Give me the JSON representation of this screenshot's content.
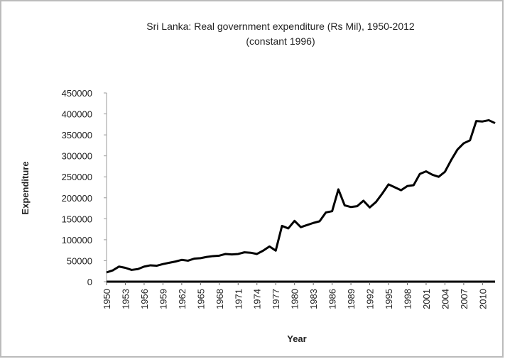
{
  "chart_data": {
    "type": "line",
    "title": "Sri Lanka: Real government expenditure (Rs Mil), 1950-2012",
    "subtitle": "(constant 1996)",
    "x_label": "Year",
    "y_label": "Expenditure",
    "x": [
      1950,
      1951,
      1952,
      1953,
      1954,
      1955,
      1956,
      1957,
      1958,
      1959,
      1960,
      1961,
      1962,
      1963,
      1964,
      1965,
      1966,
      1967,
      1968,
      1969,
      1970,
      1971,
      1972,
      1973,
      1974,
      1975,
      1976,
      1977,
      1978,
      1979,
      1980,
      1981,
      1982,
      1983,
      1984,
      1985,
      1986,
      1987,
      1988,
      1989,
      1990,
      1991,
      1992,
      1993,
      1994,
      1995,
      1996,
      1997,
      1998,
      1999,
      2000,
      2001,
      2002,
      2003,
      2004,
      2005,
      2006,
      2007,
      2008,
      2009,
      2010,
      2011,
      2012
    ],
    "values": [
      22000,
      27000,
      36000,
      33000,
      28000,
      30000,
      36000,
      39000,
      38000,
      42000,
      45000,
      48000,
      52000,
      50000,
      55000,
      56000,
      59000,
      61000,
      62000,
      66000,
      65000,
      66000,
      70000,
      69000,
      66000,
      74000,
      84000,
      74000,
      133000,
      127000,
      145000,
      130000,
      135000,
      140000,
      144000,
      165000,
      168000,
      220000,
      182000,
      178000,
      180000,
      193000,
      177000,
      190000,
      210000,
      232000,
      225000,
      218000,
      228000,
      230000,
      257000,
      263000,
      255000,
      250000,
      262000,
      290000,
      315000,
      330000,
      337000,
      383000,
      382000,
      385000,
      378000
    ],
    "color": "#000000",
    "xlim": [
      1950,
      2012
    ],
    "xticks": [
      1950,
      1953,
      1956,
      1959,
      1962,
      1965,
      1968,
      1971,
      1974,
      1977,
      1980,
      1983,
      1986,
      1989,
      1992,
      1995,
      1998,
      2001,
      2004,
      2007,
      2010
    ],
    "ylim": [
      0,
      450000
    ],
    "yticks": [
      0,
      50000,
      100000,
      150000,
      200000,
      250000,
      300000,
      350000,
      400000,
      450000
    ],
    "grid": false
  }
}
